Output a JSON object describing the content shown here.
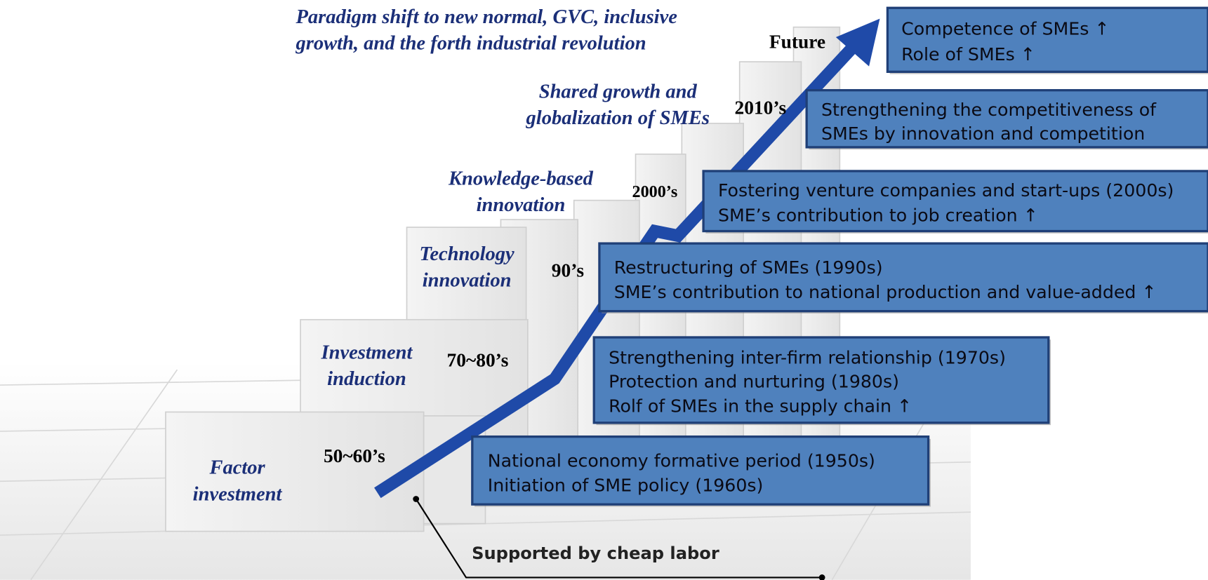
{
  "title_lines": [
    "Paradigm shift to new normal, GVC, inclusive",
    "growth, and the forth industrial revolution"
  ],
  "stages": [
    {
      "label": [
        "Factor",
        "investment"
      ],
      "period": "50~60’s",
      "box": [
        "National economy formative period (1950s)",
        "Initiation of SME policy (1960s)"
      ]
    },
    {
      "label": [
        "Investment",
        "induction"
      ],
      "period": "70~80’s",
      "box": [
        "Strengthening inter-firm relationship (1970s)",
        "Protection and nurturing (1980s)",
        "Rolf of SMEs in the supply chain ↑"
      ]
    },
    {
      "label": [
        "Technology",
        "innovation"
      ],
      "period": "90’s",
      "box": [
        "Restructuring of SMEs (1990s)",
        "SME’s contribution to national production and value-added ↑"
      ]
    },
    {
      "label": [
        "Knowledge-based",
        "innovation"
      ],
      "period": "2000’s",
      "box": [
        "Fostering venture companies and start-ups (2000s)",
        "SME’s contribution to job creation ↑"
      ]
    },
    {
      "label": [
        "Shared growth and",
        "globalization of SMEs"
      ],
      "period": "2010’s",
      "box": [
        "Strengthening the competitiveness of",
        "SMEs by innovation and competition"
      ]
    },
    {
      "period": "Future",
      "box": [
        "Competence of SMEs ↑",
        "Role of SMEs ↑"
      ]
    }
  ],
  "note": "Supported by cheap labor"
}
